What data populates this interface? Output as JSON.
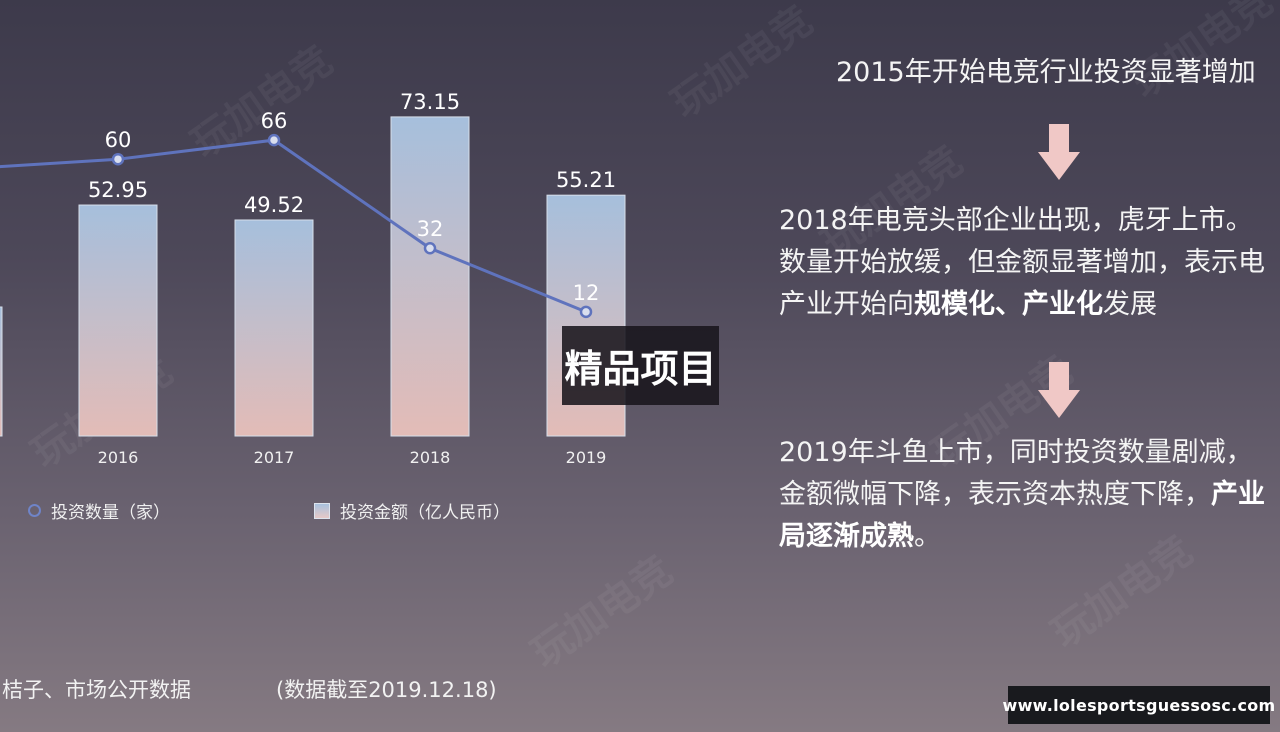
{
  "chart_data": {
    "type": "bar",
    "categories": [
      "2016",
      "2017",
      "2018",
      "2019"
    ],
    "series": [
      {
        "name": "投资数量（家）",
        "type": "line",
        "values": [
          60,
          66,
          32,
          12
        ]
      },
      {
        "name": "投资金额（亿人民币）",
        "type": "bar",
        "values": [
          52.95,
          49.52,
          73.15,
          55.21
        ]
      }
    ],
    "legend_position": "bottom",
    "grid": false
  },
  "source_text": "桔子、市场公开数据",
  "cutoff_text": "(数据截至2019.12.18)",
  "overlay_text": "精品项目",
  "watermark_text": "玩加电竞",
  "right_panel": {
    "line1": "2015年开始电竞行业投资显著增加",
    "p2_line1": "2018年电竞头部企业出现，虎牙上市。",
    "p2_line2": "数量开始放缓，但金额显著增加，表示电",
    "p2_line3_pre": "产业开始向",
    "p2_line3_bold": "规模化、产业化",
    "p2_line3_post": "发展",
    "p3_line1": "2019年斗鱼上市，同时投资数量剧减，",
    "p3_line2_pre": "金额微幅下降，表示资本热度下降，",
    "p3_line2_bold": "产业",
    "p3_line3_bold": "局逐渐成熟",
    "p3_line3_post": "。"
  },
  "url_badge": "www.lolesportsguessosc.com",
  "colors": {
    "line": "#5f73bd",
    "bar_top": "#a6bfdc",
    "bar_bottom": "#e3bcb7",
    "arrow": "#f0c8c6"
  }
}
